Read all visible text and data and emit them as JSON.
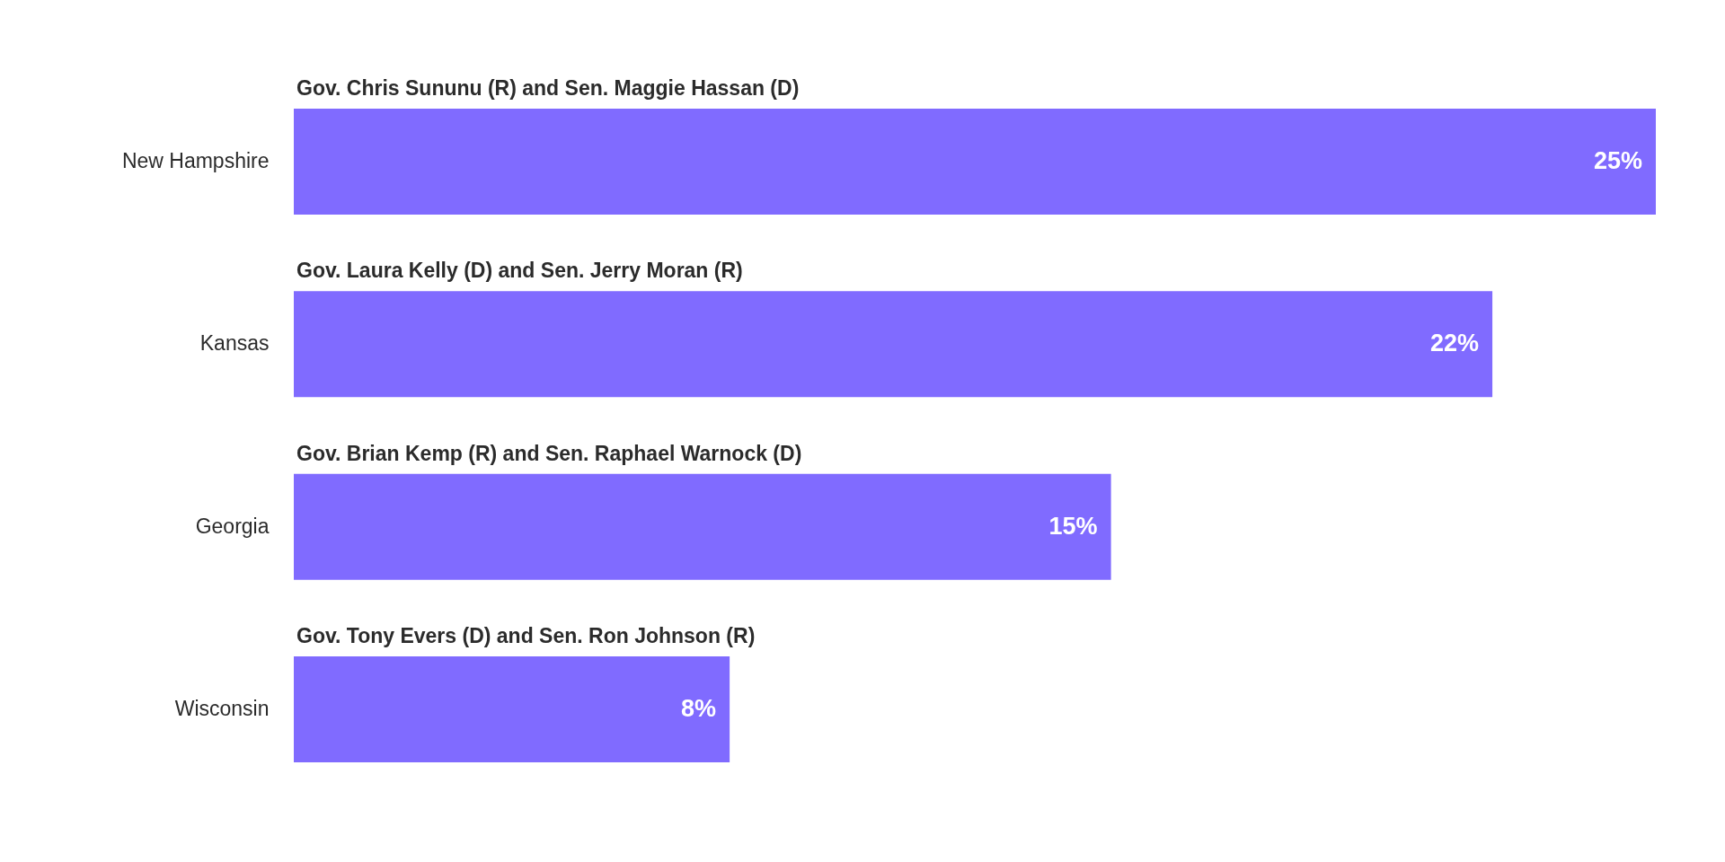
{
  "chart_data": {
    "type": "bar",
    "orientation": "horizontal",
    "categories": [
      "New Hampshire",
      "Kansas",
      "Georgia",
      "Wisconsin"
    ],
    "values": [
      25,
      22,
      15,
      8
    ],
    "value_labels": [
      "25%",
      "22%",
      "15%",
      "8%"
    ],
    "color": "#806bff",
    "annotations": [
      "Gov. Chris Sununu (R) and Sen. Maggie Hassan (D)",
      "Gov. Laura Kelly (D) and Sen. Jerry Moran (R)",
      "Gov. Brian Kemp (R) and Sen. Raphael Warnock (D)",
      "Gov. Tony Evers (D) and Sen. Ron Johnson (R)"
    ]
  }
}
